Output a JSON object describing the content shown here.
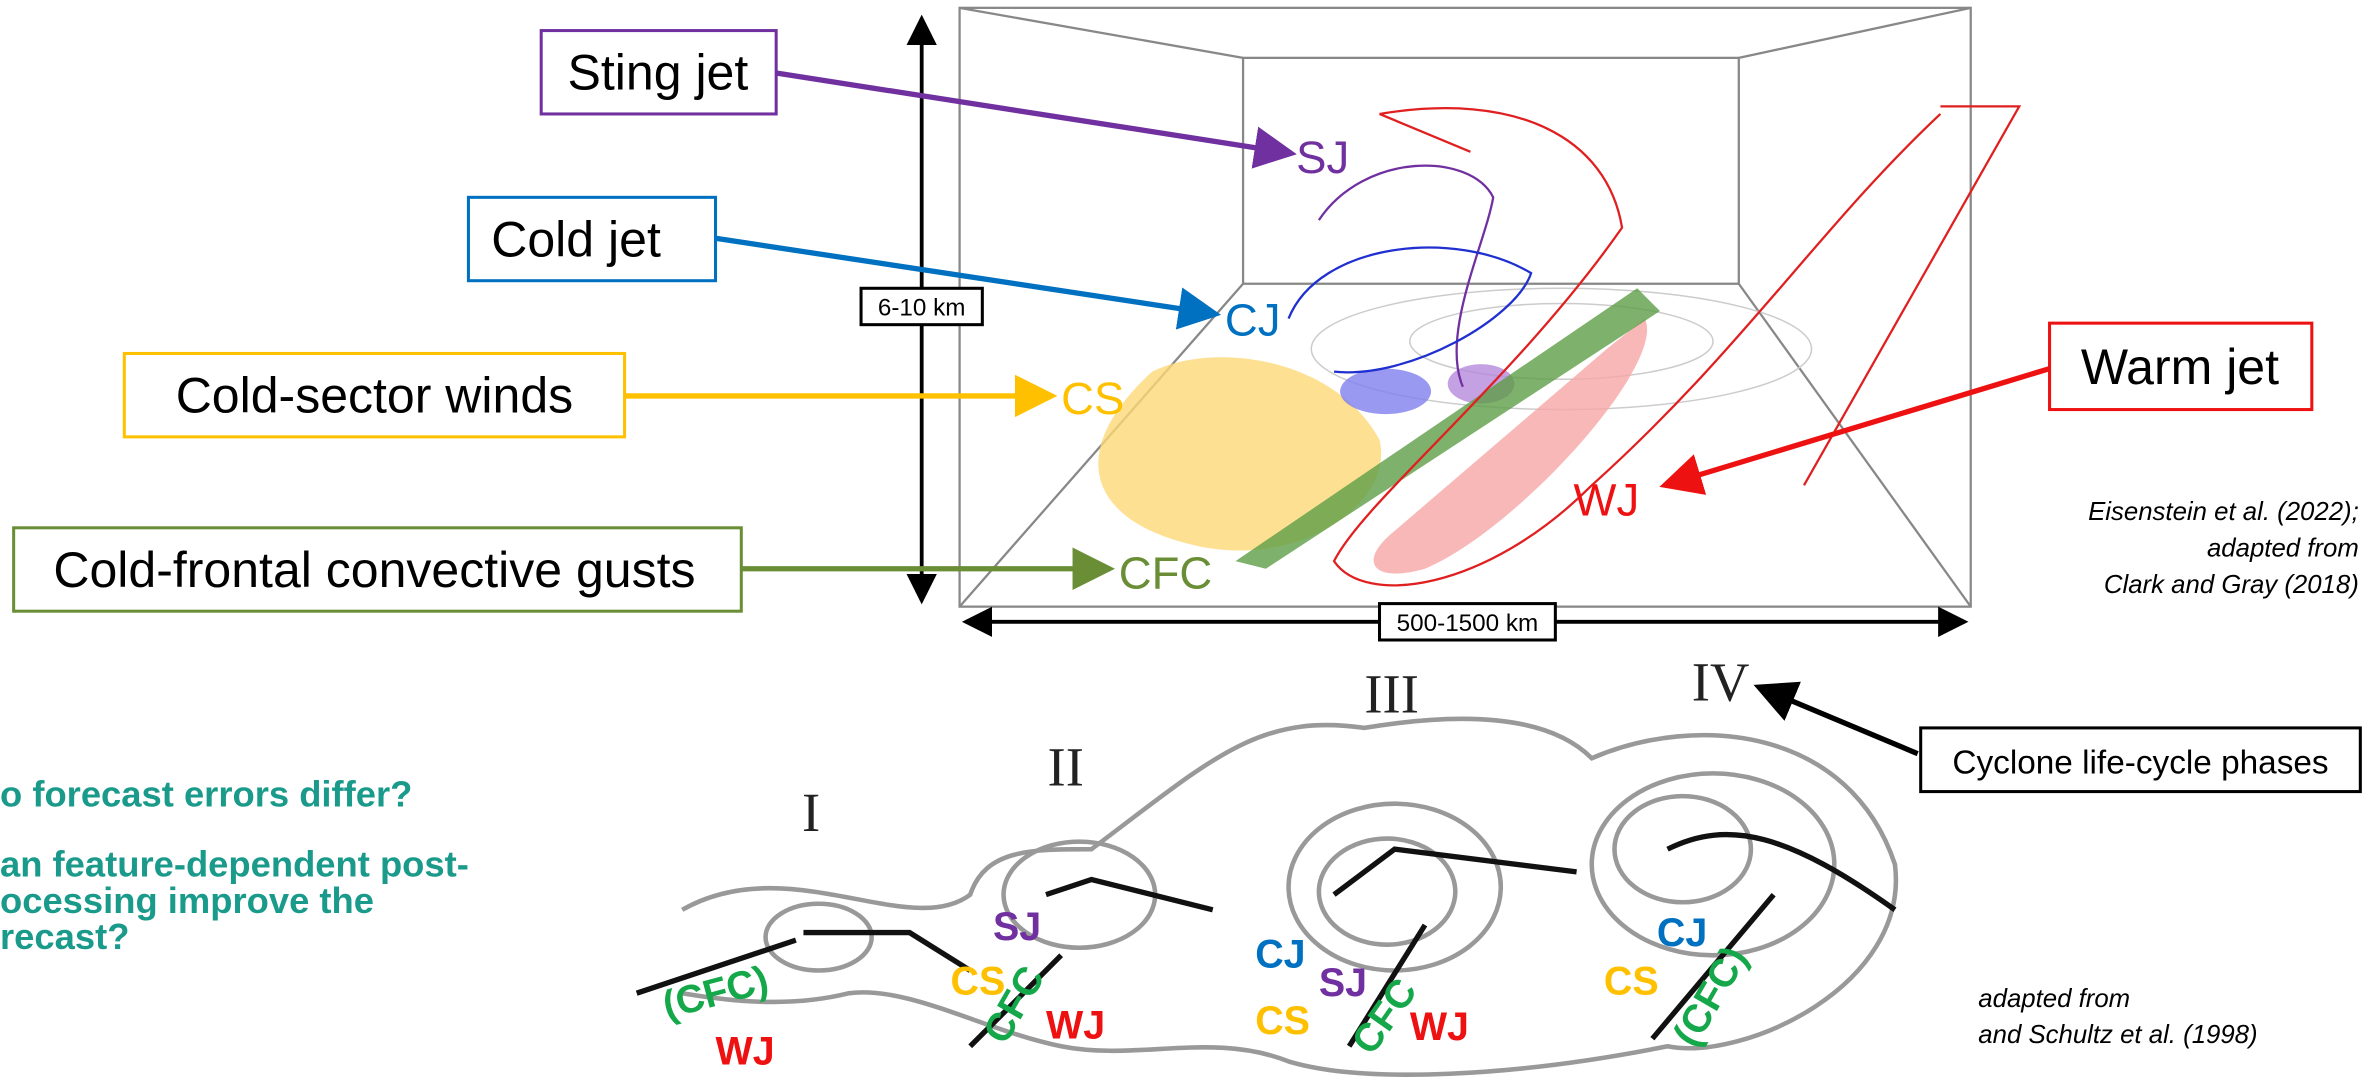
{
  "callouts": [
    {
      "label": "Sting jet",
      "abbr": "SJ"
    },
    {
      "label": "Cold jet",
      "abbr": "CJ"
    },
    {
      "label": "Cold-sector winds",
      "abbr": "CS"
    },
    {
      "label": "Cold-frontal convective gusts",
      "abbr": "CFC"
    },
    {
      "label": "Warm jet",
      "abbr": "WJ"
    }
  ],
  "scale": {
    "vertical": "6-10 km",
    "horizontal": "500-1500 km"
  },
  "credit_top": [
    "Eisenstein et al. (2022);",
    "adapted from",
    "Clark and Gray (2018)"
  ],
  "phases": {
    "labels": [
      "I",
      "II",
      "III",
      "IV"
    ],
    "caption": "Cyclone life-cycle phases"
  },
  "questions": [
    "o forecast errors differ?",
    "an feature-dependent post-",
    "ocessing improve the",
    "recast?"
  ],
  "phase_features": [
    "(CFC)",
    "WJ",
    "SJ",
    "CS",
    "CFC",
    "WJ",
    "CJ",
    "SJ",
    "CS",
    "CFC",
    "WJ",
    "CJ",
    "CS",
    "(CFC)"
  ],
  "credit_bottom": [
    "adapted from",
    "and Schultz et al. (1998)"
  ]
}
